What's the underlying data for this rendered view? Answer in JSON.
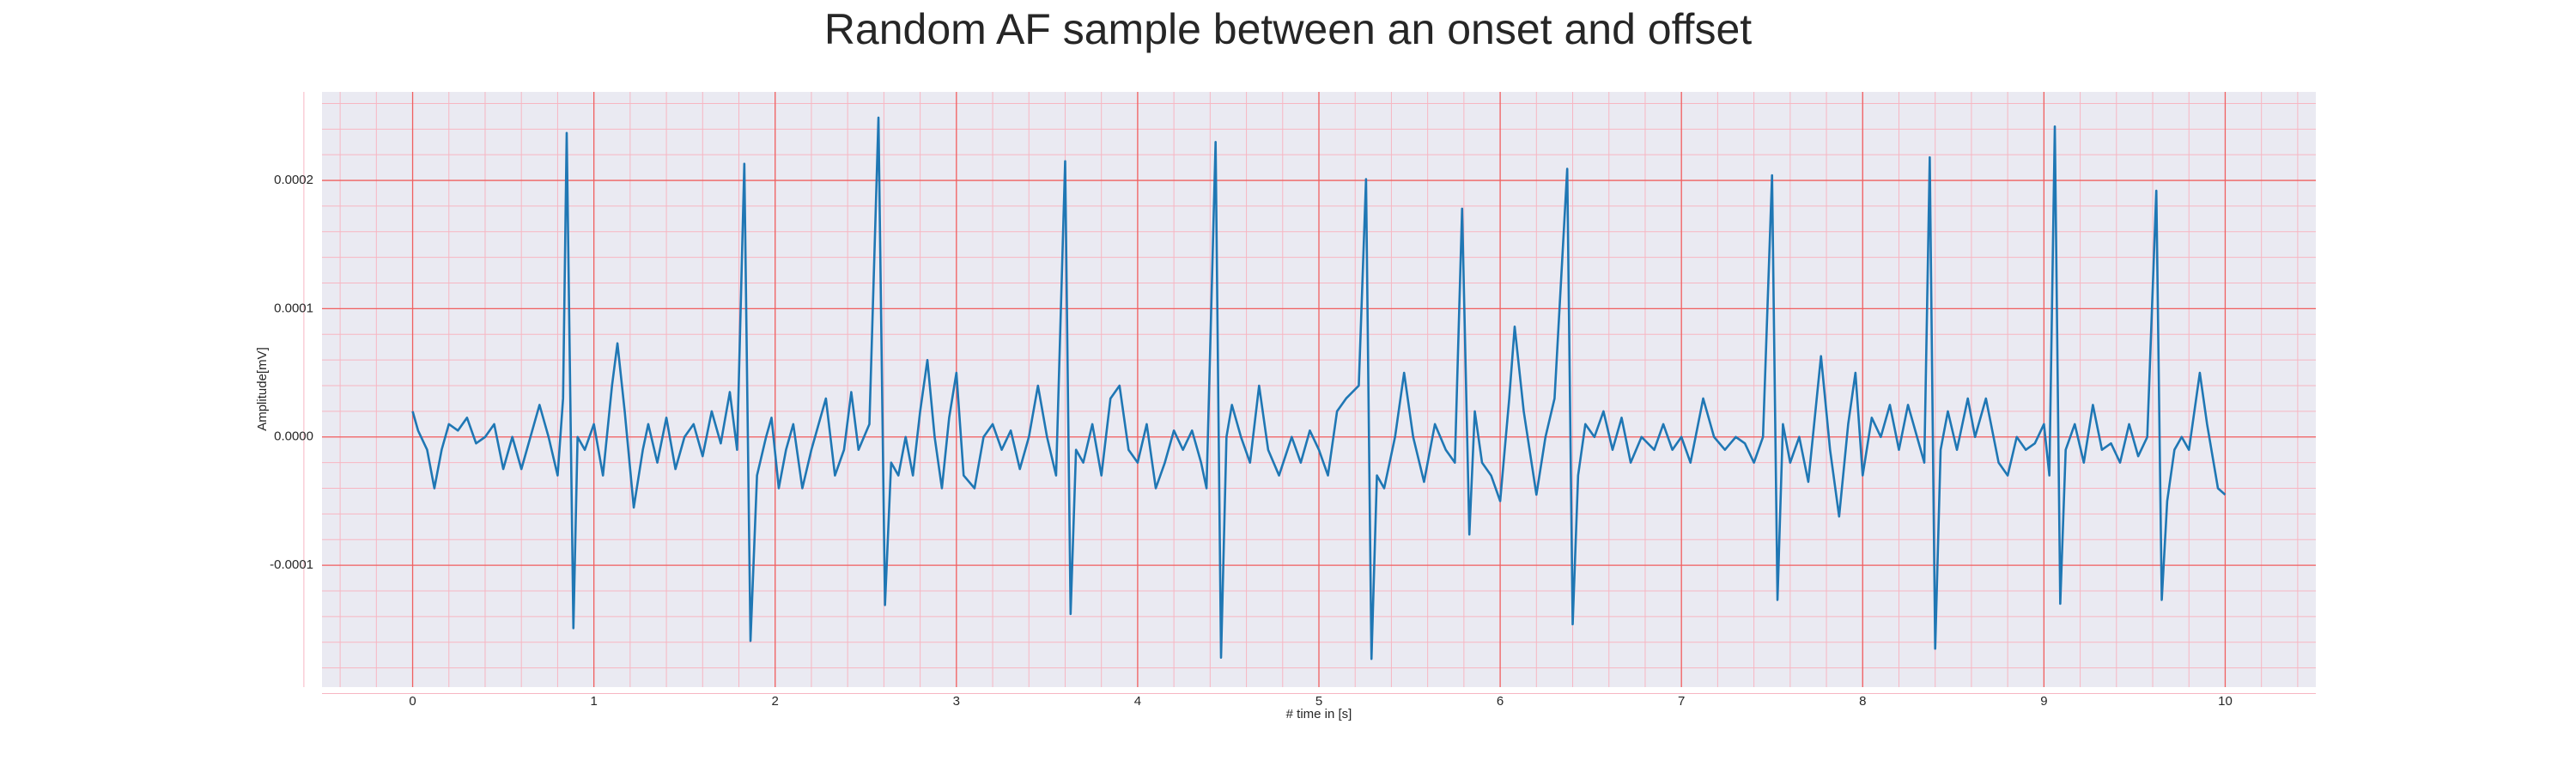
{
  "chart_data": {
    "type": "line",
    "title": "Random AF sample between an onset and offset",
    "xlabel": "# time in [s]",
    "ylabel": "Amplitude[mV]",
    "color": "#1f77b4",
    "grid": true,
    "minor_grid": true,
    "xlim": [
      -0.5,
      10.5
    ],
    "ylim": [
      -0.000195,
      0.000269
    ],
    "xticks": [
      0,
      1,
      2,
      3,
      4,
      5,
      6,
      7,
      8,
      9,
      10
    ],
    "yticks": [
      {
        "value": -0.0001,
        "label": "-0.0001"
      },
      {
        "value": 0,
        "label": "0.0000"
      },
      {
        "value": 0.0001,
        "label": "0.0001"
      },
      {
        "value": 0.0002,
        "label": "0.0002"
      }
    ],
    "x": [
      0.0,
      0.03,
      0.08,
      0.12,
      0.16,
      0.2,
      0.25,
      0.3,
      0.35,
      0.4,
      0.45,
      0.5,
      0.55,
      0.6,
      0.65,
      0.7,
      0.75,
      0.8,
      0.83,
      0.85,
      0.87,
      0.887,
      0.91,
      0.95,
      1.0,
      1.05,
      1.1,
      1.13,
      1.17,
      1.22,
      1.27,
      1.3,
      1.35,
      1.4,
      1.45,
      1.5,
      1.55,
      1.6,
      1.65,
      1.7,
      1.75,
      1.79,
      1.83,
      1.864,
      1.9,
      1.95,
      1.98,
      2.02,
      2.06,
      2.1,
      2.15,
      2.2,
      2.28,
      2.33,
      2.38,
      2.42,
      2.46,
      2.52,
      2.57,
      2.606,
      2.64,
      2.68,
      2.72,
      2.76,
      2.8,
      2.84,
      2.88,
      2.92,
      2.96,
      3.0,
      3.04,
      3.1,
      3.15,
      3.2,
      3.25,
      3.3,
      3.35,
      3.4,
      3.45,
      3.5,
      3.55,
      3.6,
      3.63,
      3.66,
      3.7,
      3.75,
      3.8,
      3.85,
      3.9,
      3.95,
      4.0,
      4.05,
      4.1,
      4.15,
      4.2,
      4.25,
      4.3,
      4.35,
      4.38,
      4.43,
      4.46,
      4.49,
      4.52,
      4.57,
      4.62,
      4.67,
      4.72,
      4.78,
      4.85,
      4.9,
      4.95,
      5.0,
      5.05,
      5.1,
      5.15,
      5.22,
      5.26,
      5.29,
      5.32,
      5.36,
      5.42,
      5.47,
      5.52,
      5.58,
      5.64,
      5.7,
      5.75,
      5.79,
      5.83,
      5.86,
      5.9,
      5.95,
      6.0,
      6.05,
      6.08,
      6.13,
      6.2,
      6.25,
      6.3,
      6.37,
      6.4,
      6.43,
      6.47,
      6.52,
      6.57,
      6.62,
      6.67,
      6.72,
      6.78,
      6.85,
      6.9,
      6.95,
      7.0,
      7.05,
      7.12,
      7.18,
      7.24,
      7.3,
      7.35,
      7.4,
      7.45,
      7.5,
      7.53,
      7.56,
      7.6,
      7.65,
      7.7,
      7.77,
      7.82,
      7.87,
      7.92,
      7.96,
      8.0,
      8.05,
      8.1,
      8.15,
      8.2,
      8.25,
      8.3,
      8.34,
      8.37,
      8.4,
      8.43,
      8.47,
      8.52,
      8.58,
      8.62,
      8.68,
      8.75,
      8.8,
      8.85,
      8.9,
      8.95,
      9.0,
      9.03,
      9.06,
      9.09,
      9.12,
      9.17,
      9.22,
      9.27,
      9.32,
      9.37,
      9.42,
      9.47,
      9.52,
      9.57,
      9.62,
      9.65,
      9.68,
      9.72,
      9.76,
      9.8,
      9.86,
      9.9,
      9.96,
      10.0
    ],
    "values": [
      2e-05,
      5e-06,
      -1e-05,
      -4e-05,
      -1e-05,
      1e-05,
      5e-06,
      1.5e-05,
      -5e-06,
      0,
      1e-05,
      -2.5e-05,
      0,
      -2.5e-05,
      0,
      2.5e-05,
      0,
      -3e-05,
      3e-05,
      0.000237,
      3e-05,
      -0.000149,
      0,
      -1e-05,
      1e-05,
      -3e-05,
      4e-05,
      7.3e-05,
      2e-05,
      -5.5e-05,
      -1e-05,
      1e-05,
      -2e-05,
      1.5e-05,
      -2.5e-05,
      0,
      1e-05,
      -1.5e-05,
      2e-05,
      -5e-06,
      3.5e-05,
      -1e-05,
      0.000213,
      -0.000159,
      -3e-05,
      0,
      1.5e-05,
      -4e-05,
      -1e-05,
      1e-05,
      -4e-05,
      -1e-05,
      3e-05,
      -3e-05,
      -1e-05,
      3.5e-05,
      -1e-05,
      1e-05,
      0.000249,
      -0.000131,
      -2e-05,
      -3e-05,
      0,
      -3e-05,
      2e-05,
      6e-05,
      0,
      -4e-05,
      1.5e-05,
      5e-05,
      -3e-05,
      -4e-05,
      0,
      1e-05,
      -1e-05,
      5e-06,
      -2.5e-05,
      0,
      4e-05,
      0,
      -3e-05,
      0.000215,
      -0.000138,
      -1e-05,
      -2e-05,
      1e-05,
      -3e-05,
      3e-05,
      4e-05,
      -1e-05,
      -2e-05,
      1e-05,
      -4e-05,
      -2e-05,
      5e-06,
      -1e-05,
      5e-06,
      -2e-05,
      -4e-05,
      0.00023,
      -0.000172,
      0,
      2.5e-05,
      0,
      -2e-05,
      4e-05,
      -1e-05,
      -3e-05,
      0,
      -2e-05,
      5e-06,
      -1e-05,
      -3e-05,
      2e-05,
      3e-05,
      4e-05,
      0.000201,
      -0.000173,
      -3e-05,
      -4e-05,
      0,
      5e-05,
      0,
      -3.5e-05,
      1e-05,
      -1e-05,
      -2e-05,
      0.000178,
      -7.6e-05,
      2e-05,
      -2e-05,
      -3e-05,
      -5e-05,
      3e-05,
      8.6e-05,
      2e-05,
      -4.5e-05,
      0,
      3e-05,
      0.000209,
      -0.000146,
      -3e-05,
      1e-05,
      0,
      2e-05,
      -1e-05,
      1.5e-05,
      -2e-05,
      0,
      -1e-05,
      1e-05,
      -1e-05,
      0,
      -2e-05,
      3e-05,
      0,
      -1e-05,
      0,
      -5e-06,
      -2e-05,
      0,
      0.000204,
      -0.000127,
      1e-05,
      -2e-05,
      0,
      -3.5e-05,
      6.3e-05,
      -1e-05,
      -6.2e-05,
      1e-05,
      5e-05,
      -3e-05,
      1.5e-05,
      0,
      2.5e-05,
      -1e-05,
      2.5e-05,
      0,
      -2e-05,
      0.000218,
      -0.000165,
      -1e-05,
      2e-05,
      -1e-05,
      3e-05,
      0,
      3e-05,
      -2e-05,
      -3e-05,
      0,
      -1e-05,
      -5e-06,
      1e-05,
      -3e-05,
      0.000242,
      -0.00013,
      -1e-05,
      1e-05,
      -2e-05,
      2.5e-05,
      -1e-05,
      -5e-06,
      -2e-05,
      1e-05,
      -1.5e-05,
      0,
      0.000192,
      -0.000127,
      -5e-05,
      -1e-05,
      0,
      -1e-05,
      5e-05,
      1e-05,
      -4e-05,
      -4.5e-05
    ]
  }
}
